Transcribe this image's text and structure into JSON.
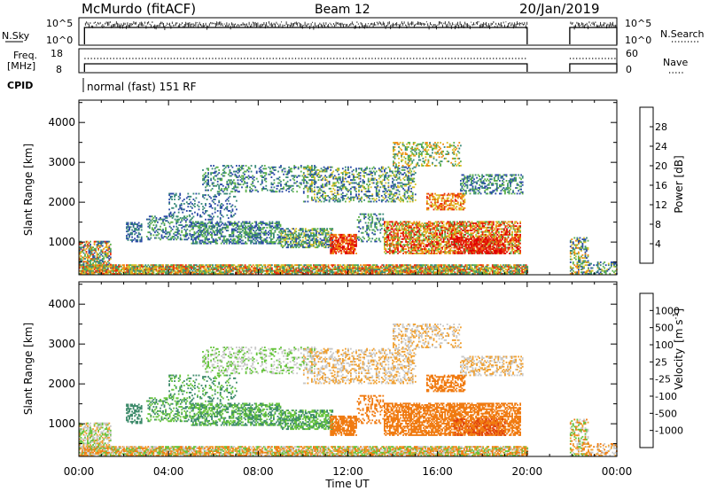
{
  "header": {
    "station": "McMurdo (fitACF)",
    "beam": "Beam 12",
    "date": "20/Jan/2019"
  },
  "status_panels": {
    "nsky_label": "N.Sky",
    "nsearch_label": "N.Search",
    "nsky_ticks": [
      "10^5",
      "10^0"
    ],
    "nsearch_ticks": [
      "10^5",
      "10^0"
    ],
    "freq_label_line1": "Freq.",
    "freq_label_line2": "[MHz]",
    "freq_ticks": [
      "18",
      "8"
    ],
    "nave_label": "Nave",
    "nave_ticks": [
      "60",
      "0"
    ],
    "cpid_label": "CPID",
    "cpid_text": "normal (fast) 151 RF"
  },
  "chart_data": [
    {
      "type": "heatmap",
      "name": "power",
      "ylabel": "Slant Range [km]",
      "xlabel": "",
      "xlim_hours": [
        0,
        24
      ],
      "ylim_km": [
        180,
        4560
      ],
      "y_ticks": [
        "1000",
        "2000",
        "3000",
        "4000"
      ],
      "colorbar_label": "Power [dB]",
      "colorbar_ticks": [
        "4",
        "8",
        "12",
        "16",
        "20",
        "24",
        "28"
      ],
      "colorbar_colors": [
        "#1f1fff",
        "#2b4aa6",
        "#3a8a7a",
        "#5bb04a",
        "#d8c02a",
        "#f08a10",
        "#e83010",
        "#e00000"
      ],
      "data_gap_hours": [
        20.0,
        21.9
      ]
    },
    {
      "type": "heatmap",
      "name": "velocity",
      "ylabel": "Slant Range [km]",
      "xlabel": "Time UT",
      "xlim_hours": [
        0,
        24
      ],
      "ylim_km": [
        180,
        4560
      ],
      "x_ticks": [
        "00:00",
        "04:00",
        "08:00",
        "12:00",
        "16:00",
        "20:00",
        "00:00"
      ],
      "y_ticks": [
        "1000",
        "2000",
        "3000",
        "4000"
      ],
      "colorbar_label_main": "Velocity",
      "colorbar_label_units": "[m s",
      "colorbar_label_exp": "-1",
      "colorbar_label_close": "]",
      "colorbar_ticks": [
        "1000",
        "500",
        "100",
        "25",
        "-25",
        "-100",
        "-500",
        "-1000"
      ],
      "colorbar_colors": [
        "#1b3bbb",
        "#2f62a8",
        "#3c8a6a",
        "#66c43c",
        "#c8c8c8",
        "#f0a030",
        "#f07a10",
        "#e04010",
        "#e00000"
      ],
      "data_gap_hours": [
        20.0,
        21.9
      ]
    }
  ]
}
